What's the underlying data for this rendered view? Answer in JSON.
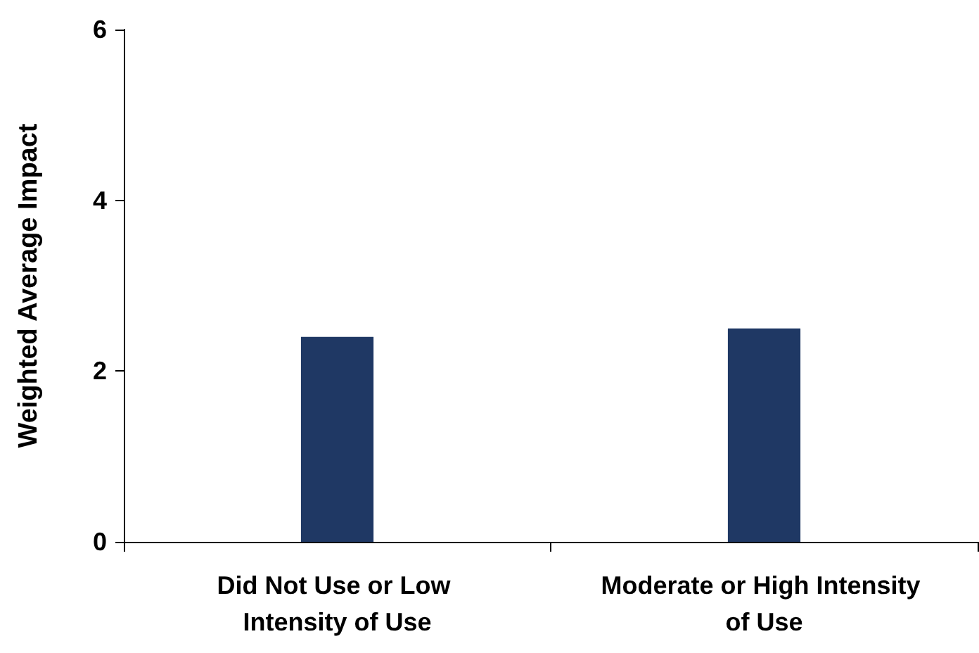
{
  "chart_data": {
    "type": "bar",
    "ylabel": "Weighted Average Impact",
    "categories": [
      "Did Not Use or Low Intensity of Use",
      "Moderate or High Intensity of Use"
    ],
    "values": [
      2.4,
      2.5
    ],
    "color": "#1f3864",
    "ylim": [
      0,
      6
    ],
    "yticks": [
      0,
      2,
      4,
      6
    ],
    "grid": false
  }
}
